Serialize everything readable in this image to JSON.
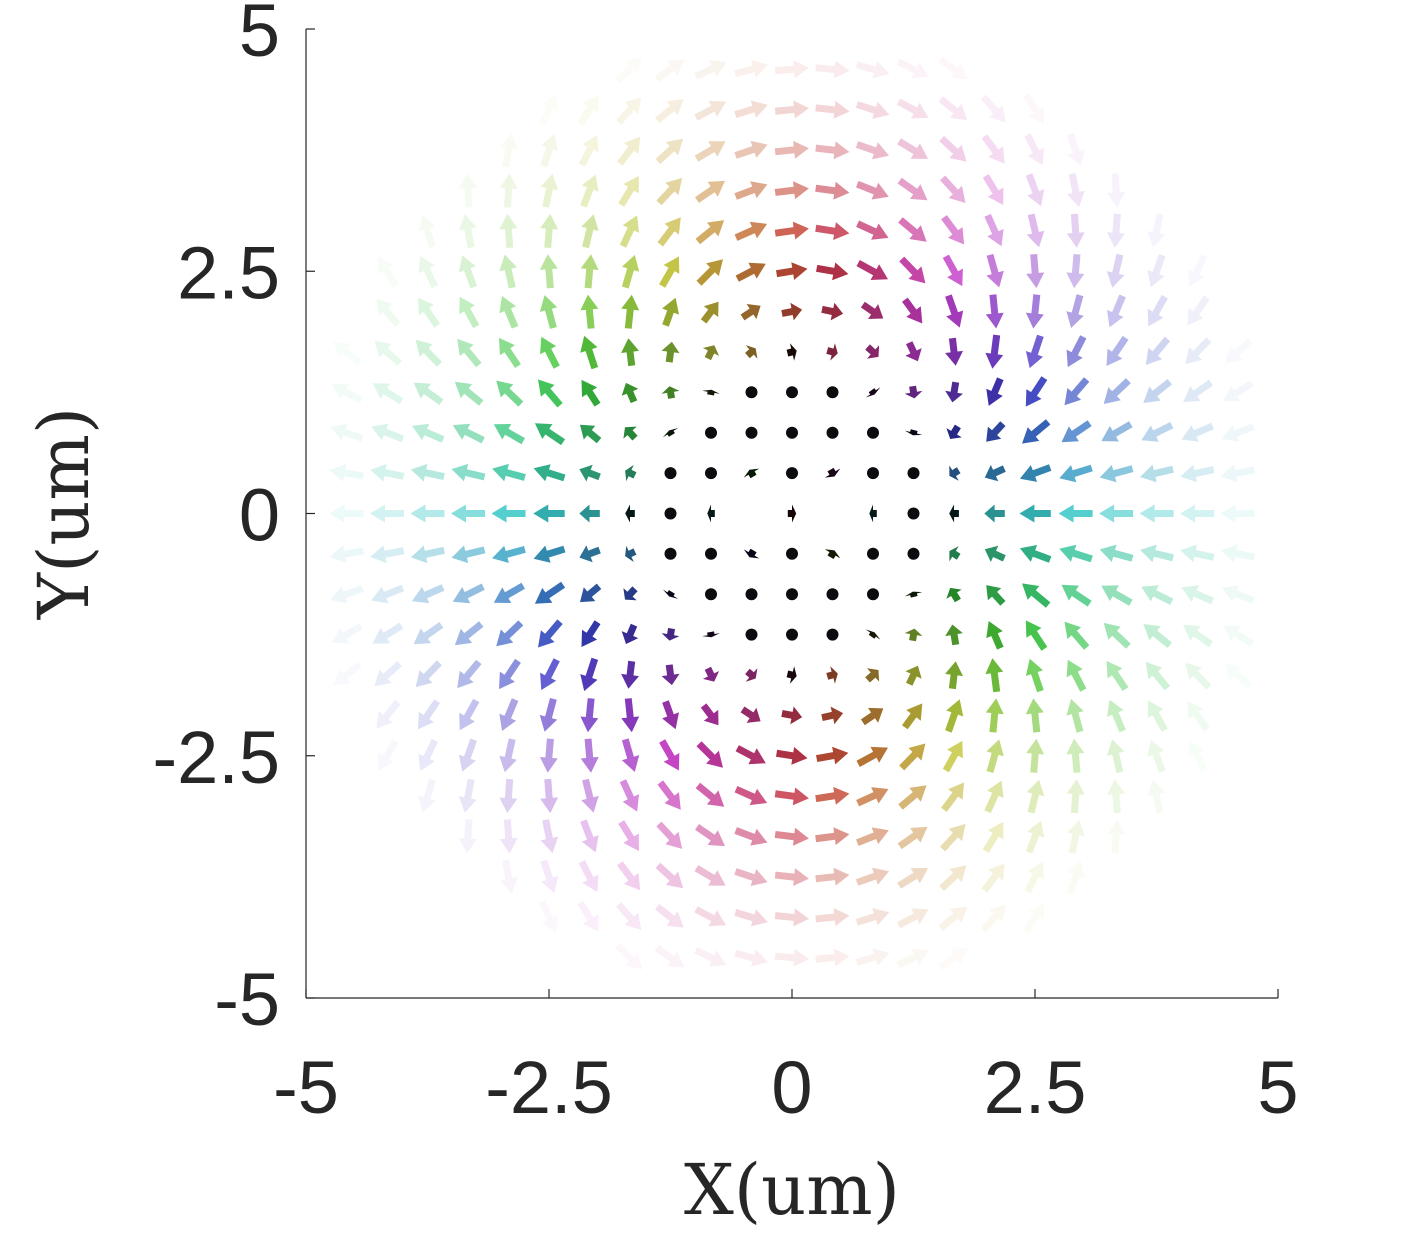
{
  "chart_data": {
    "type": "vector-field",
    "xlabel": "X(um)",
    "ylabel": "Y(um)",
    "xlim": [
      -5,
      5
    ],
    "ylim": [
      -5,
      5
    ],
    "xticks": [
      -5,
      -2.5,
      0,
      2.5,
      5
    ],
    "yticks": [
      -5,
      -2.5,
      0,
      2.5,
      5
    ],
    "xtick_labels": [
      "-5",
      "-2.5",
      "0",
      "2.5",
      "5"
    ],
    "ytick_labels": [
      "-5",
      "-2.5",
      "0",
      "2.5",
      "5"
    ],
    "grid": false,
    "legend": "none",
    "field": {
      "grid_spacing": 0.4167,
      "x_range": [
        -5,
        5
      ],
      "y_range": [
        -5,
        5
      ],
      "description_values": {
        "singularities": [
          [
            -0.4,
            0
          ],
          [
            0.4,
            0
          ]
        ],
        "transition_radius": 2.6,
        "fade_radius": 5.0
      }
    }
  }
}
